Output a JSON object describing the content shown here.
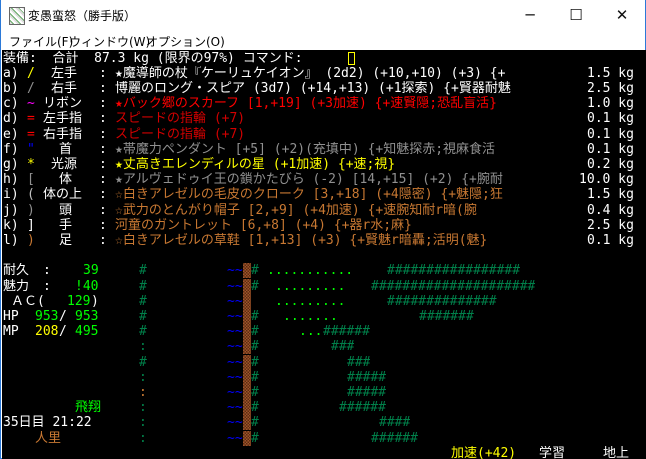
{
  "window": {
    "title": "変愚蛮怒（勝手版）",
    "controls": {
      "minimize": "─",
      "maximize": "☐",
      "close": "✕"
    },
    "menu": [
      "ファイル(F)",
      "ウィンドウ(W)",
      "オプション(O)"
    ]
  },
  "colors": {
    "white": "#ffffff",
    "gray": "#909090",
    "yellow": "#ffff00",
    "red": "#ff0000",
    "darkred": "#d00000",
    "magenta": "#ff00ff",
    "blue": "#0000ff",
    "orange": "#c87832",
    "green": "#00ff00",
    "tree": "#00804a",
    "water": "#0000ff"
  },
  "terminal": {
    "rows": [
      {
        "row": 0,
        "segments": [
          {
            "col": 0,
            "text": "装備:  合計  87.3 kg (限界の97%) コマンド:",
            "color": "#ffffff"
          }
        ],
        "cursor_col": 43
      },
      {
        "row": 1,
        "segments": [
          {
            "col": 0,
            "text": "a)",
            "color": "#ffffff"
          },
          {
            "col": 3,
            "text": "/",
            "color": "#ffff00"
          },
          {
            "col": 6,
            "text": "左手",
            "color": "#ffffff"
          },
          {
            "col": 12,
            "text": ":",
            "color": "#ffffff"
          },
          {
            "col": 14,
            "text": "★魔導師の杖『ケーリュケイオン』 (2d2) (+10,+10) (+3) {+",
            "color": "#ffffff"
          },
          {
            "col": 73,
            "text": "1.5 kg",
            "color": "#ffffff"
          }
        ]
      },
      {
        "row": 2,
        "segments": [
          {
            "col": 0,
            "text": "b)",
            "color": "#ffffff"
          },
          {
            "col": 3,
            "text": "/",
            "color": "#909090"
          },
          {
            "col": 6,
            "text": "右手",
            "color": "#ffffff"
          },
          {
            "col": 12,
            "text": ":",
            "color": "#ffffff"
          },
          {
            "col": 14,
            "text": "博麗のロング・スピア (3d7) (+14,+13) (+1探索) {+賢器耐魅",
            "color": "#ffffff"
          },
          {
            "col": 73,
            "text": "2.5 kg",
            "color": "#ffffff"
          }
        ]
      },
      {
        "row": 3,
        "segments": [
          {
            "col": 0,
            "text": "c)",
            "color": "#ffffff"
          },
          {
            "col": 3,
            "text": "~",
            "color": "#ff00ff"
          },
          {
            "col": 5,
            "text": "リボン",
            "color": "#ffffff"
          },
          {
            "col": 12,
            "text": ":",
            "color": "#ffffff"
          },
          {
            "col": 14,
            "text": "★バック郷のスカーフ [1,+19] (+3加速) {+速賢隠;恐乱盲活}",
            "color": "#ff0000"
          },
          {
            "col": 73,
            "text": "1.0 kg",
            "color": "#ffffff"
          }
        ]
      },
      {
        "row": 4,
        "segments": [
          {
            "col": 0,
            "text": "d)",
            "color": "#ffffff"
          },
          {
            "col": 3,
            "text": "=",
            "color": "#ff0000"
          },
          {
            "col": 5,
            "text": "左手指",
            "color": "#ffffff"
          },
          {
            "col": 12,
            "text": ":",
            "color": "#ffffff"
          },
          {
            "col": 14,
            "text": "スピードの指輪 (+7)",
            "color": "#d00000"
          },
          {
            "col": 73,
            "text": "0.1 kg",
            "color": "#ffffff"
          }
        ]
      },
      {
        "row": 5,
        "segments": [
          {
            "col": 0,
            "text": "e)",
            "color": "#ffffff"
          },
          {
            "col": 3,
            "text": "=",
            "color": "#ff0000"
          },
          {
            "col": 5,
            "text": "右手指",
            "color": "#ffffff"
          },
          {
            "col": 12,
            "text": ":",
            "color": "#ffffff"
          },
          {
            "col": 14,
            "text": "スピードの指輪 (+7)",
            "color": "#d00000"
          },
          {
            "col": 73,
            "text": "0.1 kg",
            "color": "#ffffff"
          }
        ]
      },
      {
        "row": 6,
        "segments": [
          {
            "col": 0,
            "text": "f)",
            "color": "#ffffff"
          },
          {
            "col": 3,
            "text": "\"",
            "color": "#0000ff"
          },
          {
            "col": 7,
            "text": "首",
            "color": "#ffffff"
          },
          {
            "col": 12,
            "text": ":",
            "color": "#ffffff"
          },
          {
            "col": 14,
            "text": "★帯魔力ペンダント [+5] (+2)(充填中) {+知魅探赤;視麻食活",
            "color": "#909090"
          },
          {
            "col": 73,
            "text": "0.1 kg",
            "color": "#ffffff"
          }
        ]
      },
      {
        "row": 7,
        "segments": [
          {
            "col": 0,
            "text": "g)",
            "color": "#ffffff"
          },
          {
            "col": 3,
            "text": "*",
            "color": "#ffff00"
          },
          {
            "col": 6,
            "text": "光源",
            "color": "#ffffff"
          },
          {
            "col": 12,
            "text": ":",
            "color": "#ffffff"
          },
          {
            "col": 14,
            "text": "★丈高きエレンディルの星 (+1加速) {+速;視}",
            "color": "#ffff00"
          },
          {
            "col": 73,
            "text": "0.2 kg",
            "color": "#ffffff"
          }
        ]
      },
      {
        "row": 8,
        "segments": [
          {
            "col": 0,
            "text": "h)",
            "color": "#ffffff"
          },
          {
            "col": 3,
            "text": "[",
            "color": "#909090"
          },
          {
            "col": 7,
            "text": "体",
            "color": "#ffffff"
          },
          {
            "col": 12,
            "text": ":",
            "color": "#ffffff"
          },
          {
            "col": 14,
            "text": "★アルヴェドゥイ王の鎖かたびら (-2) [14,+15] (+2) {+腕耐",
            "color": "#909090"
          },
          {
            "col": 72,
            "text": "10.0 kg",
            "color": "#ffffff"
          }
        ]
      },
      {
        "row": 9,
        "segments": [
          {
            "col": 0,
            "text": "i)",
            "color": "#ffffff"
          },
          {
            "col": 3,
            "text": "(",
            "color": "#c0c0c0"
          },
          {
            "col": 5,
            "text": "体の上",
            "color": "#ffffff"
          },
          {
            "col": 12,
            "text": ":",
            "color": "#ffffff"
          },
          {
            "col": 14,
            "text": "☆白きアレゼルの毛皮のクローク [3,+18] (+4隠密) {+魅隠;狂",
            "color": "#c87832"
          },
          {
            "col": 73,
            "text": "1.5 kg",
            "color": "#ffffff"
          }
        ]
      },
      {
        "row": 10,
        "segments": [
          {
            "col": 0,
            "text": "j)",
            "color": "#ffffff"
          },
          {
            "col": 3,
            "text": ")",
            "color": "#909090"
          },
          {
            "col": 7,
            "text": "頭",
            "color": "#ffffff"
          },
          {
            "col": 12,
            "text": ":",
            "color": "#ffffff"
          },
          {
            "col": 14,
            "text": "☆武力のとんがり帽子 [2,+9] (+4加速) {+速腕知耐r暗(腕",
            "color": "#c87832"
          },
          {
            "col": 73,
            "text": "0.4 kg",
            "color": "#ffffff"
          }
        ]
      },
      {
        "row": 11,
        "segments": [
          {
            "col": 0,
            "text": "k)",
            "color": "#ffffff"
          },
          {
            "col": 3,
            "text": "]",
            "color": "#ffffff"
          },
          {
            "col": 7,
            "text": "手",
            "color": "#ffffff"
          },
          {
            "col": 12,
            "text": ":",
            "color": "#ffffff"
          },
          {
            "col": 14,
            "text": "河童のガントレット [6,+8] (+4) {+器r水;麻}",
            "color": "#c87832"
          },
          {
            "col": 73,
            "text": "2.5 kg",
            "color": "#ffffff"
          }
        ]
      },
      {
        "row": 12,
        "segments": [
          {
            "col": 0,
            "text": "l)",
            "color": "#ffffff"
          },
          {
            "col": 3,
            "text": ")",
            "color": "#c87832"
          },
          {
            "col": 7,
            "text": "足",
            "color": "#ffffff"
          },
          {
            "col": 12,
            "text": ":",
            "color": "#ffffff"
          },
          {
            "col": 14,
            "text": "☆白きアレゼルの草鞋 [1,+13] (+3) {+賢魅r暗轟;活明(魅}",
            "color": "#c87832"
          },
          {
            "col": 73,
            "text": "0.1 kg",
            "color": "#ffffff"
          }
        ]
      },
      {
        "row": 14,
        "segments": [
          {
            "col": 0,
            "text": "耐久",
            "color": "#ffffff"
          },
          {
            "col": 5,
            "text": ":",
            "color": "#ffffff"
          },
          {
            "col": 10,
            "text": "39",
            "color": "#00ff00"
          },
          {
            "col": 17,
            "text": "#",
            "color": "#00804a"
          },
          {
            "col": 28,
            "text": "~~",
            "color": "#0000ff"
          },
          {
            "col": 30,
            "tile": "wall"
          },
          {
            "col": 31,
            "text": "#",
            "color": "#00804a"
          },
          {
            "col": 33,
            "text": "...........",
            "color": "#00ff00"
          },
          {
            "col": 48,
            "text": "#################",
            "color": "#00804a"
          }
        ]
      },
      {
        "row": 15,
        "segments": [
          {
            "col": 0,
            "text": "魅力",
            "color": "#ffffff"
          },
          {
            "col": 5,
            "text": ":",
            "color": "#ffffff"
          },
          {
            "col": 9,
            "text": "!40",
            "color": "#00ff00"
          },
          {
            "col": 17,
            "text": "#",
            "color": "#00804a"
          },
          {
            "col": 28,
            "text": "~~",
            "color": "#0000ff"
          },
          {
            "col": 30,
            "tile": "wall"
          },
          {
            "col": 31,
            "text": "#",
            "color": "#00804a"
          },
          {
            "col": 34,
            "text": ".........",
            "color": "#00ff00"
          },
          {
            "col": 46,
            "text": "#####################",
            "color": "#00804a"
          }
        ]
      },
      {
        "row": 16,
        "segments": [
          {
            "col": 1,
            "text": "ＡＣ(",
            "color": "#ffffff"
          },
          {
            "col": 8,
            "text": "129",
            "color": "#00ff00"
          },
          {
            "col": 11,
            "text": ")",
            "color": "#ffffff"
          },
          {
            "col": 17,
            "text": "#",
            "color": "#00804a"
          },
          {
            "col": 28,
            "text": "~~",
            "color": "#0000ff"
          },
          {
            "col": 30,
            "tile": "wall"
          },
          {
            "col": 34,
            "text": ".........",
            "color": "#00ff00"
          },
          {
            "col": 48,
            "text": "##############",
            "color": "#00804a"
          }
        ]
      },
      {
        "row": 17,
        "segments": [
          {
            "col": 0,
            "text": "HP",
            "color": "#ffffff"
          },
          {
            "col": 4,
            "text": "953",
            "color": "#00ff00"
          },
          {
            "col": 7,
            "text": "/",
            "color": "#ffffff"
          },
          {
            "col": 9,
            "text": "953",
            "color": "#00ff00"
          },
          {
            "col": 17,
            "text": "#",
            "color": "#00804a"
          },
          {
            "col": 28,
            "text": "~~",
            "color": "#0000ff"
          },
          {
            "col": 30,
            "tile": "wall"
          },
          {
            "col": 31,
            "text": "#",
            "color": "#00804a"
          },
          {
            "col": 35,
            "text": ".......",
            "color": "#00ff00"
          },
          {
            "col": 52,
            "text": "#######",
            "color": "#00804a"
          }
        ]
      },
      {
        "row": 18,
        "segments": [
          {
            "col": 0,
            "text": "MP",
            "color": "#ffffff"
          },
          {
            "col": 4,
            "text": "208",
            "color": "#ffff00"
          },
          {
            "col": 7,
            "text": "/",
            "color": "#ffffff"
          },
          {
            "col": 9,
            "text": "495",
            "color": "#00ff00"
          },
          {
            "col": 17,
            "text": "#",
            "color": "#00804a"
          },
          {
            "col": 28,
            "text": "~~",
            "color": "#0000ff"
          },
          {
            "col": 30,
            "tile": "wall"
          },
          {
            "col": 31,
            "text": "#",
            "color": "#00804a"
          },
          {
            "col": 37,
            "text": "...",
            "color": "#00ff00"
          },
          {
            "col": 40,
            "text": "######",
            "color": "#00804a"
          }
        ]
      },
      {
        "row": 19,
        "segments": [
          {
            "col": 17,
            "text": ":",
            "color": "#00804a"
          },
          {
            "col": 28,
            "text": "~~",
            "color": "#0000ff"
          },
          {
            "col": 30,
            "tile": "wall"
          },
          {
            "col": 31,
            "text": "#",
            "color": "#00804a"
          },
          {
            "col": 41,
            "text": "###",
            "color": "#00804a"
          }
        ]
      },
      {
        "row": 20,
        "segments": [
          {
            "col": 17,
            "text": "#",
            "color": "#00804a"
          },
          {
            "col": 28,
            "text": "~~",
            "color": "#0000ff"
          },
          {
            "col": 30,
            "tile": "wall"
          },
          {
            "col": 31,
            "text": "#",
            "color": "#00804a"
          },
          {
            "col": 43,
            "text": "###",
            "color": "#00804a"
          }
        ]
      },
      {
        "row": 21,
        "segments": [
          {
            "col": 17,
            "text": ":",
            "color": "#00804a"
          },
          {
            "col": 28,
            "text": "~~",
            "color": "#0000ff"
          },
          {
            "col": 30,
            "tile": "wall"
          },
          {
            "col": 31,
            "text": "#",
            "color": "#00804a"
          },
          {
            "col": 43,
            "text": "#####",
            "color": "#00804a"
          }
        ]
      },
      {
        "row": 22,
        "segments": [
          {
            "col": 17,
            "text": ":",
            "color": "#c87832"
          },
          {
            "col": 28,
            "text": "~~",
            "color": "#0000ff"
          },
          {
            "col": 30,
            "tile": "wall"
          },
          {
            "col": 31,
            "text": "#",
            "color": "#00804a"
          },
          {
            "col": 43,
            "text": "#####",
            "color": "#00804a"
          }
        ]
      },
      {
        "row": 23,
        "segments": [
          {
            "col": 9,
            "text": "飛翔",
            "color": "#00ff00"
          },
          {
            "col": 17,
            "text": ":",
            "color": "#00804a"
          },
          {
            "col": 28,
            "text": "~~",
            "color": "#0000ff"
          },
          {
            "col": 30,
            "tile": "wall"
          },
          {
            "col": 31,
            "text": "#",
            "color": "#00804a"
          },
          {
            "col": 42,
            "text": "######",
            "color": "#00804a"
          }
        ]
      },
      {
        "row": 24,
        "segments": [
          {
            "col": 0,
            "text": "35日目 21:22",
            "color": "#ffffff"
          },
          {
            "col": 17,
            "text": ":",
            "color": "#00804a"
          },
          {
            "col": 28,
            "text": "~~",
            "color": "#0000ff"
          },
          {
            "col": 30,
            "tile": "wall"
          },
          {
            "col": 31,
            "text": "#",
            "color": "#00804a"
          },
          {
            "col": 47,
            "text": "####",
            "color": "#00804a"
          }
        ]
      },
      {
        "row": 25,
        "segments": [
          {
            "col": 4,
            "text": "人里",
            "color": "#c87832"
          },
          {
            "col": 17,
            "text": ":",
            "color": "#00804a"
          },
          {
            "col": 28,
            "text": "~~",
            "color": "#0000ff"
          },
          {
            "col": 30,
            "tile": "wall"
          },
          {
            "col": 31,
            "text": "#",
            "color": "#00804a"
          },
          {
            "col": 46,
            "text": "######",
            "color": "#00804a"
          }
        ]
      },
      {
        "row": 26,
        "segments": [
          {
            "col": 56,
            "text": "加速(+42)",
            "color": "#ffff00"
          },
          {
            "col": 67,
            "text": "学習",
            "color": "#ffffff"
          },
          {
            "col": 75,
            "text": "地上",
            "color": "#ffffff"
          }
        ]
      }
    ]
  }
}
